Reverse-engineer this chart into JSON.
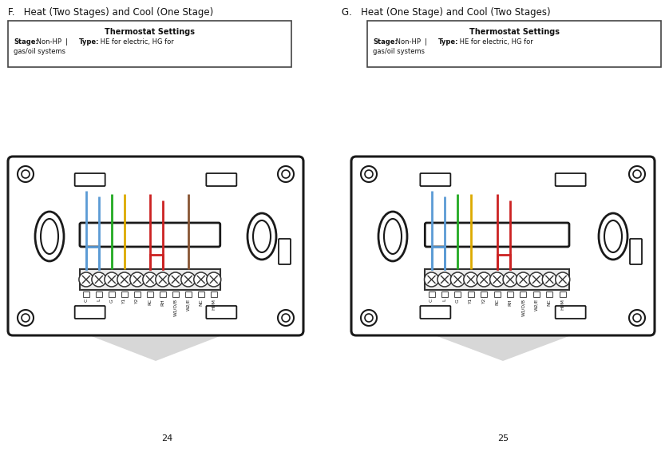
{
  "page_left": "24",
  "page_right": "25",
  "title_F": "F.   Heat (Two Stages) and Cool (One Stage)",
  "title_G": "G.   Heat (One Stage) and Cool (Two Stages)",
  "settings_title": "Thermostat Settings",
  "settings_stage_label": "Stage:",
  "settings_stage_val": " Non-HP",
  "settings_type_label": "Type:",
  "settings_type_val": " HE for electric, HG for",
  "settings_line2": "gas/oil systems",
  "bg_color": "#ffffff",
  "terminals": [
    "C",
    "L",
    "G",
    "Y1",
    "Y2",
    "RC",
    "RH",
    "W1/O/B",
    "W2/E",
    "NC",
    "HUM"
  ],
  "wire_colors_F": [
    "#5b9bd5",
    "#5b9bd5",
    "#22aa22",
    "#ddaa00",
    null,
    "#cc2222",
    "#cc2222",
    null,
    "#885533",
    null,
    null
  ],
  "wire_colors_G": [
    "#5b9bd5",
    "#5b9bd5",
    "#22aa22",
    "#ddaa00",
    null,
    "#cc2222",
    "#cc2222",
    null,
    null,
    null,
    null
  ],
  "shadow_color": "#d0d0d0"
}
